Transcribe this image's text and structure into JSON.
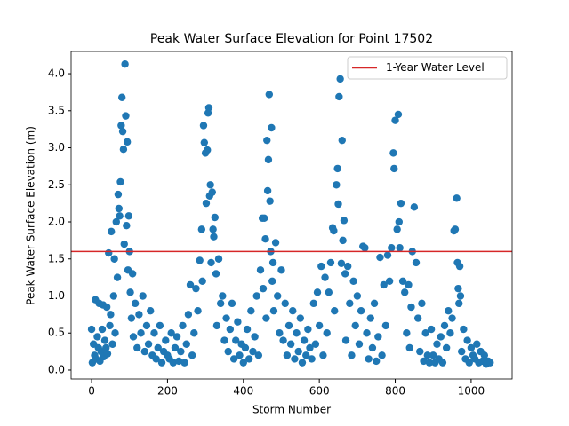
{
  "chart_data": {
    "type": "scatter",
    "title": "Peak Water Surface Elevation for Point 17502",
    "xlabel": "Storm Number",
    "ylabel": "Peak Water Surface Elevation (m)",
    "color": "#1f77b4",
    "xlim": [
      -54,
      1108
    ],
    "ylim": [
      -0.12,
      4.3
    ],
    "xticks": [
      0,
      200,
      400,
      600,
      800,
      1000
    ],
    "yticks": [
      {
        "value": 0,
        "label": "0.0"
      },
      {
        "value": 0.5,
        "label": "0.5"
      },
      {
        "value": 1,
        "label": "1.0"
      },
      {
        "value": 1.5,
        "label": "1.5"
      },
      {
        "value": 2,
        "label": "2.0"
      },
      {
        "value": 2.5,
        "label": "2.5"
      },
      {
        "value": 3,
        "label": "3.0"
      },
      {
        "value": 3.5,
        "label": "3.5"
      },
      {
        "value": 4,
        "label": "4.0"
      }
    ],
    "reference_line": {
      "name": "1-Year Water Level",
      "value": 1.6,
      "color": "#d62728"
    },
    "legend": "upper right",
    "x": [
      0,
      2,
      5,
      8,
      10,
      12,
      15,
      18,
      20,
      22,
      25,
      28,
      30,
      32,
      35,
      38,
      40,
      42,
      45,
      48,
      50,
      52,
      55,
      58,
      60,
      62,
      65,
      68,
      70,
      72,
      74,
      76,
      78,
      80,
      82,
      84,
      86,
      88,
      90,
      92,
      94,
      96,
      98,
      100,
      102,
      105,
      108,
      110,
      115,
      120,
      125,
      130,
      135,
      140,
      145,
      150,
      155,
      160,
      165,
      170,
      175,
      180,
      185,
      190,
      195,
      200,
      205,
      210,
      215,
      220,
      225,
      230,
      235,
      240,
      245,
      250,
      255,
      260,
      265,
      270,
      275,
      280,
      285,
      290,
      292,
      295,
      297,
      300,
      302,
      305,
      307,
      309,
      311,
      313,
      315,
      318,
      320,
      322,
      325,
      328,
      330,
      335,
      340,
      345,
      350,
      355,
      360,
      365,
      370,
      375,
      380,
      385,
      390,
      395,
      400,
      405,
      410,
      415,
      420,
      425,
      430,
      435,
      440,
      445,
      450,
      452,
      455,
      458,
      460,
      462,
      464,
      466,
      468,
      470,
      472,
      474,
      476,
      478,
      480,
      485,
      490,
      495,
      500,
      505,
      510,
      515,
      520,
      525,
      530,
      535,
      540,
      545,
      550,
      555,
      560,
      565,
      570,
      575,
      580,
      585,
      590,
      595,
      600,
      605,
      610,
      615,
      620,
      625,
      630,
      635,
      638,
      640,
      645,
      648,
      650,
      652,
      655,
      658,
      660,
      662,
      665,
      668,
      670,
      675,
      680,
      685,
      690,
      695,
      700,
      705,
      710,
      715,
      720,
      725,
      730,
      735,
      740,
      745,
      750,
      755,
      760,
      765,
      770,
      775,
      780,
      785,
      790,
      795,
      797,
      800,
      805,
      808,
      810,
      812,
      815,
      820,
      825,
      830,
      835,
      838,
      842,
      845,
      850,
      855,
      860,
      865,
      870,
      875,
      880,
      885,
      890,
      895,
      900,
      905,
      910,
      915,
      920,
      925,
      930,
      935,
      940,
      945,
      950,
      955,
      958,
      962,
      964,
      966,
      968,
      970,
      972,
      975,
      980,
      985,
      990,
      995,
      1000,
      1005,
      1010,
      1015,
      1020,
      1025,
      1030,
      1035,
      1040,
      1045,
      1050
    ],
    "values": [
      0.55,
      0.1,
      0.35,
      0.2,
      0.95,
      0.15,
      0.45,
      0.3,
      0.9,
      0.12,
      0.25,
      0.55,
      0.88,
      0.18,
      0.4,
      0.3,
      0.85,
      0.22,
      1.58,
      0.6,
      0.75,
      1.87,
      0.35,
      1.0,
      1.5,
      0.5,
      2.0,
      1.25,
      2.37,
      2.18,
      2.08,
      2.54,
      3.3,
      3.68,
      3.22,
      2.98,
      1.7,
      4.13,
      3.43,
      1.95,
      3.08,
      1.35,
      2.08,
      1.6,
      1.05,
      0.7,
      1.3,
      0.45,
      0.9,
      0.3,
      0.75,
      0.5,
      1.0,
      0.25,
      0.6,
      0.35,
      0.8,
      0.2,
      0.5,
      0.15,
      0.3,
      0.6,
      0.1,
      0.25,
      0.4,
      0.2,
      0.15,
      0.5,
      0.1,
      0.3,
      0.45,
      0.12,
      0.25,
      0.6,
      0.1,
      0.35,
      0.75,
      1.15,
      0.2,
      0.5,
      1.1,
      0.8,
      1.48,
      1.9,
      1.2,
      3.3,
      3.07,
      2.93,
      2.25,
      2.97,
      3.47,
      3.54,
      2.35,
      2.5,
      1.45,
      2.4,
      1.9,
      1.8,
      2.06,
      1.3,
      0.6,
      1.5,
      0.9,
      1.0,
      0.4,
      0.7,
      0.25,
      0.55,
      0.9,
      0.15,
      0.4,
      0.65,
      0.2,
      0.35,
      0.1,
      0.3,
      0.55,
      0.15,
      0.8,
      0.25,
      0.45,
      1.0,
      0.2,
      1.35,
      2.05,
      1.1,
      2.05,
      1.77,
      0.7,
      3.1,
      2.42,
      2.84,
      3.72,
      2.28,
      1.6,
      3.27,
      1.2,
      1.45,
      0.8,
      1.72,
      1.0,
      0.5,
      1.35,
      0.4,
      0.9,
      0.2,
      0.6,
      0.35,
      0.8,
      0.15,
      0.5,
      0.25,
      0.7,
      0.1,
      0.4,
      0.2,
      0.55,
      0.3,
      0.15,
      0.9,
      0.35,
      1.05,
      0.6,
      1.4,
      0.2,
      1.25,
      0.5,
      1.05,
      1.45,
      1.92,
      1.88,
      0.8,
      2.5,
      2.72,
      2.24,
      3.69,
      3.93,
      1.44,
      3.1,
      1.75,
      2.02,
      1.3,
      0.4,
      1.4,
      0.9,
      0.2,
      1.2,
      0.6,
      1.0,
      0.35,
      0.8,
      1.67,
      1.65,
      0.5,
      0.15,
      0.7,
      0.3,
      0.9,
      0.12,
      0.45,
      1.52,
      0.2,
      1.15,
      0.6,
      1.55,
      1.2,
      1.65,
      2.93,
      2.72,
      3.37,
      1.9,
      3.45,
      2.0,
      1.65,
      2.25,
      1.2,
      1.05,
      0.5,
      1.15,
      0.3,
      0.85,
      1.6,
      2.2,
      1.45,
      0.7,
      0.25,
      0.9,
      0.12,
      0.5,
      0.2,
      0.1,
      0.55,
      0.2,
      0.1,
      0.35,
      0.15,
      0.45,
      0.1,
      0.6,
      0.3,
      0.8,
      0.5,
      0.7,
      1.88,
      1.9,
      2.32,
      1.45,
      1.1,
      0.9,
      1.4,
      1.0,
      0.25,
      0.55,
      0.15,
      0.4,
      0.1,
      0.3,
      0.2,
      0.15,
      0.35,
      0.1,
      0.25,
      0.12,
      0.2,
      0.08,
      0.12,
      0.1
    ]
  }
}
